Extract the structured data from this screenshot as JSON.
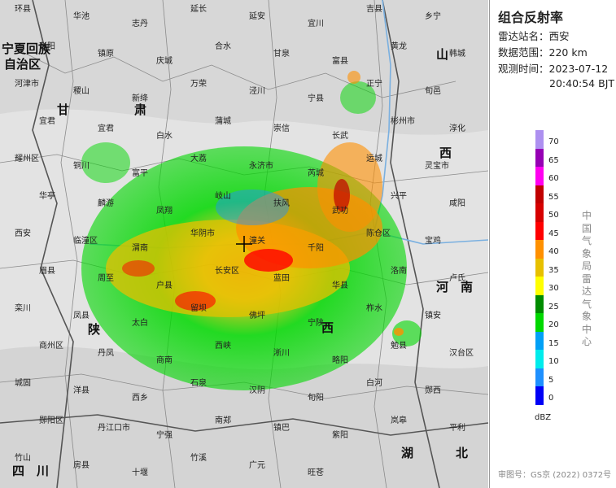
{
  "panel": {
    "title": "组合反射率",
    "station_label": "雷达站名：",
    "station_value": "西安",
    "range_label": "数据范围：",
    "range_value": "220 km",
    "time_label": "观测时间：",
    "time_date": "2023-07-12",
    "time_clock": "20:40:54 BJT",
    "legend_unit": "dBZ",
    "agency": "中国气象局雷达气象中心",
    "map_number": "审图号：GS京 (2022) 0372号"
  },
  "legend": {
    "levels": [
      "70",
      "65",
      "60",
      "55",
      "50",
      "45",
      "40",
      "35",
      "30",
      "25",
      "20",
      "15",
      "10",
      "5",
      "0"
    ],
    "colors": [
      "#ad90f0",
      "#9600b4",
      "#ff00f0",
      "#c00000",
      "#d60000",
      "#ff0000",
      "#ff9000",
      "#e7c000",
      "#ffff00",
      "#008c00",
      "#00d800",
      "#01a0f6",
      "#00ecec",
      "#1e90ff",
      "#0000f6"
    ]
  },
  "map": {
    "radar_center_name": "西安",
    "province_labels": [
      "宁夏回族",
      "自治区",
      "甘",
      "肃",
      "陕",
      "西",
      "山",
      "西",
      "河",
      "南",
      "湖",
      "北",
      "四",
      "川"
    ],
    "city_labels": [
      "环县",
      "华池",
      "志丹",
      "延长",
      "延安",
      "宜川",
      "吉县",
      "乡宁",
      "彭阳",
      "镇原",
      "庆城",
      "合水",
      "甘泉",
      "富县",
      "黄龙",
      "韩城",
      "河津市",
      "稷山",
      "新绛",
      "万荣",
      "泾川",
      "宁县",
      "正宁",
      "旬邑",
      "宜君",
      "宜君",
      "白水",
      "蒲城",
      "崇信",
      "长武",
      "彬州市",
      "淳化",
      "耀州区",
      "铜川",
      "富平",
      "大荔",
      "永济市",
      "芮城",
      "运城",
      "灵宝市",
      "华亭",
      "麟游",
      "凤翔",
      "岐山",
      "扶风",
      "武功",
      "兴平",
      "咸阳",
      "西安",
      "临潼区",
      "渭南",
      "华阴市",
      "潼关",
      "千阳",
      "陈仓区",
      "宝鸡",
      "眉县",
      "周至",
      "户县",
      "长安区",
      "蓝田",
      "华县",
      "洛南",
      "卢氏",
      "栾川",
      "凤县",
      "太白",
      "留坝",
      "佛坪",
      "宁陕",
      "柞水",
      "镇安",
      "商州区",
      "丹凤",
      "商南",
      "西峡",
      "淅川",
      "略阳",
      "勉县",
      "汉台区",
      "城固",
      "洋县",
      "西乡",
      "石泉",
      "汉阴",
      "旬阳",
      "白河",
      "郧西",
      "郧阳区",
      "丹江口市",
      "宁强",
      "南郑",
      "镇巴",
      "紫阳",
      "岚皋",
      "平利",
      "竹山",
      "房县",
      "十堰",
      "竹溪",
      "广元",
      "旺苍"
    ]
  }
}
